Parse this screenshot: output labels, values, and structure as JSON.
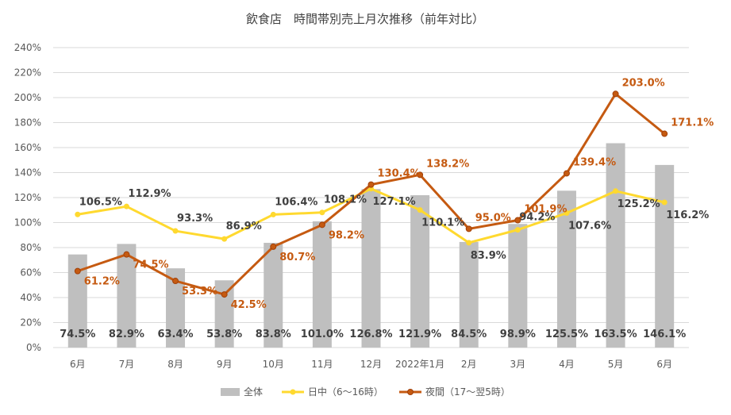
{
  "chart_data": {
    "type": "bar+line",
    "title": "飲食店　時間帯別売上月次推移（前年対比）",
    "categories": [
      "6月",
      "7月",
      "8月",
      "9月",
      "10月",
      "11月",
      "12月",
      "2022年1月",
      "2月",
      "3月",
      "4月",
      "5月",
      "6月"
    ],
    "y_ticks": [
      "0%",
      "20%",
      "40%",
      "60%",
      "80%",
      "100%",
      "120%",
      "140%",
      "160%",
      "180%",
      "200%",
      "220%",
      "240%"
    ],
    "ylim": [
      0,
      240
    ],
    "grid": true,
    "legend_position": "bottom",
    "series": [
      {
        "name": "全体",
        "kind": "bar",
        "color": "#BFBFBF",
        "values": [
          74.5,
          82.9,
          63.4,
          53.8,
          83.8,
          101.0,
          126.8,
          121.9,
          84.5,
          98.9,
          125.5,
          163.5,
          146.1
        ],
        "labels": [
          "74.5%",
          "82.9%",
          "63.4%",
          "53.8%",
          "83.8%",
          "101.0%",
          "126.8%",
          "121.9%",
          "84.5%",
          "98.9%",
          "125.5%",
          "163.5%",
          "146.1%"
        ]
      },
      {
        "name": "日中（6～16時）",
        "kind": "line",
        "color": "#FFD92F",
        "values": [
          106.5,
          112.9,
          93.3,
          86.9,
          106.4,
          108.1,
          127.1,
          110.1,
          83.9,
          94.2,
          107.6,
          125.2,
          116.2
        ],
        "labels": [
          "106.5%",
          "112.9%",
          "93.3%",
          "86.9%",
          "106.4%",
          "108.1%",
          "127.1%",
          "110.1%",
          "83.9%",
          "94.2%",
          "107.6%",
          "125.2%",
          "116.2%"
        ]
      },
      {
        "name": "夜間（17～翌5時）",
        "kind": "line",
        "color": "#C55A11",
        "values": [
          61.2,
          74.5,
          53.3,
          42.5,
          80.7,
          98.2,
          130.4,
          138.2,
          95.0,
          101.9,
          139.4,
          203.0,
          171.1
        ],
        "labels": [
          "61.2%",
          "74.5%",
          "53.3%",
          "42.5%",
          "80.7%",
          "98.2%",
          "130.4%",
          "138.2%",
          "95.0%",
          "101.9%",
          "139.4%",
          "203.0%",
          "171.1%"
        ]
      }
    ]
  }
}
